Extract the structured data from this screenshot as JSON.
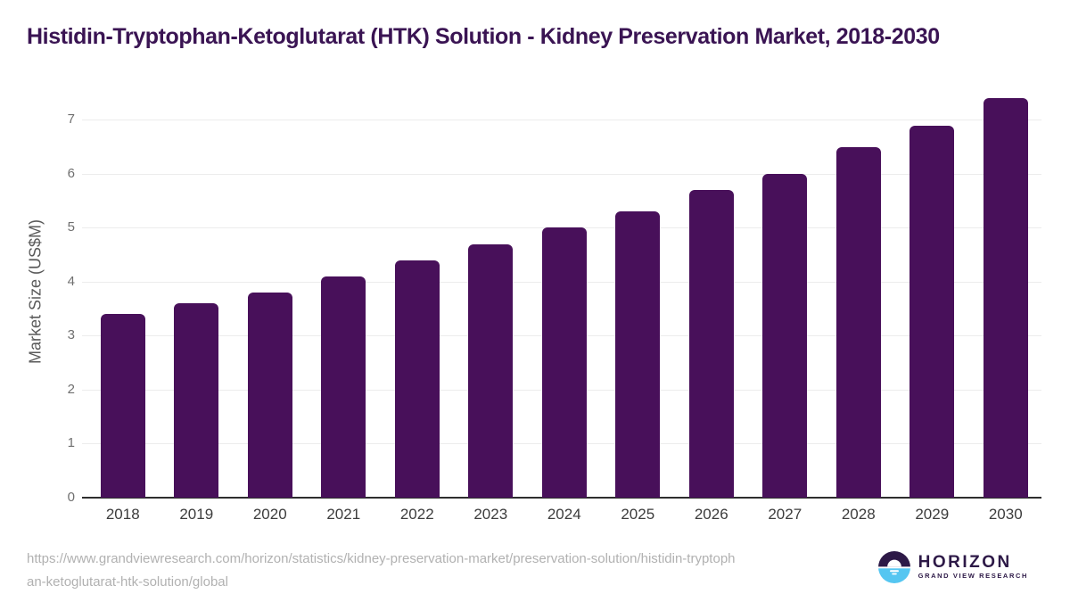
{
  "header": {
    "title": "Histidin-Tryptophan-Ketoglutarat (HTK) Solution - Kidney Preservation Market, 2018-2030"
  },
  "chart_data": {
    "type": "bar",
    "title": "Histidin-Tryptophan-Ketoglutarat (HTK) Solution - Kidney Preservation Market, 2018-2030",
    "categories": [
      "2018",
      "2019",
      "2020",
      "2021",
      "2022",
      "2023",
      "2024",
      "2025",
      "2026",
      "2027",
      "2028",
      "2029",
      "2030"
    ],
    "values": [
      3.4,
      3.6,
      3.8,
      4.1,
      4.4,
      4.7,
      5.0,
      5.3,
      5.7,
      6.0,
      6.5,
      6.9,
      7.4
    ],
    "xlabel": "",
    "ylabel": "Market Size (US$M)",
    "ylim": [
      0,
      7.57
    ],
    "yticks": [
      0,
      1,
      2,
      3,
      4,
      5,
      6,
      7
    ],
    "grid": true,
    "legend": false,
    "bar_color": "#48105a"
  },
  "footer": {
    "source_url": "https://www.grandviewresearch.com/horizon/statistics/kidney-preservation-market/preservation-solution/histidin-tryptophan-ketoglutarat-htk-solution/global",
    "logo": {
      "brand": "HORIZON",
      "tagline": "GRAND VIEW RESEARCH"
    }
  },
  "colors": {
    "title": "#3a1453",
    "bar": "#48105a",
    "axis_line": "#2e2e2e",
    "gridline": "#ececec",
    "y_tick": "#6f6f6f",
    "x_tick": "#3c3c3c",
    "url_text": "#b1b1b1",
    "logo_purple": "#2d1947",
    "logo_blue": "#55c6f1"
  }
}
